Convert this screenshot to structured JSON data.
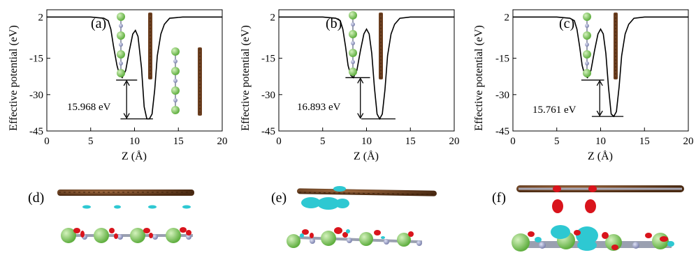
{
  "figure": {
    "panel_labels": [
      "(a)",
      "(b)",
      "(c)",
      "(d)",
      "(e)",
      "(f)"
    ]
  },
  "colors": {
    "curve": "#000000",
    "carbon_brown": "#6b3e1f",
    "chlorine_green": "#8ecf6a",
    "nitrogen_blue": "#a9aed6",
    "bond_gray": "#9aa0b0",
    "iso_cyan": "#2ec8d2",
    "iso_red": "#d9141c"
  },
  "chart_data": [
    {
      "type": "line",
      "panel": "(a)",
      "xlabel": "Z (Å)",
      "ylabel": "Effective potential  (eV)",
      "xlim": [
        0,
        20
      ],
      "ylim": [
        -45,
        5
      ],
      "xticks": [
        0,
        5,
        10,
        15,
        20
      ],
      "yticks": [
        2,
        -15,
        -30,
        -45
      ],
      "ytick_labels": [
        "2",
        "-15",
        "-30",
        "-45"
      ],
      "x": [
        0,
        5,
        6.5,
        7.0,
        7.3,
        7.6,
        8.0,
        8.3,
        8.6,
        9.0,
        9.4,
        9.8,
        10.1,
        10.4,
        10.8,
        11.1,
        11.4,
        11.7,
        12.0,
        12.3,
        12.6,
        13.0,
        13.4,
        14.0,
        15.5,
        20
      ],
      "y": [
        2,
        2,
        1.5,
        0.5,
        -3,
        -10,
        -18,
        -22,
        -23,
        -20,
        -12,
        -5,
        -3.5,
        -6,
        -19,
        -35,
        -40,
        -40,
        -38,
        -28,
        -14,
        -5,
        -1,
        1.5,
        2,
        2
      ],
      "depth_bracket": {
        "label": "15.968 eV",
        "upper": -24,
        "lower": -40,
        "x": 9.1,
        "upper_span": [
          7.9,
          10.3
        ],
        "lower_span": [
          8.4,
          12.1
        ]
      }
    },
    {
      "type": "line",
      "panel": "(b)",
      "xlabel": "Z (Å)",
      "ylabel": "Effective potential  (eV)",
      "xlim": [
        0,
        20
      ],
      "ylim": [
        -45,
        5
      ],
      "xticks": [
        0,
        5,
        10,
        15,
        20
      ],
      "yticks": [
        2,
        -15,
        -30,
        -45
      ],
      "ytick_labels": [
        "2",
        "-15",
        "-30",
        "-45"
      ],
      "x": [
        0,
        5,
        6.5,
        7.0,
        7.3,
        7.6,
        7.9,
        8.2,
        8.5,
        8.9,
        9.3,
        9.7,
        10.0,
        10.3,
        10.6,
        10.9,
        11.2,
        11.5,
        11.8,
        12.1,
        12.4,
        12.8,
        13.2,
        13.8,
        15.0,
        20
      ],
      "y": [
        2,
        2,
        1.5,
        0.5,
        -3,
        -10,
        -18,
        -22,
        -23,
        -20,
        -12,
        -5,
        -3,
        -5,
        -13,
        -27,
        -38,
        -40,
        -38,
        -28,
        -14,
        -5,
        -1,
        1.5,
        2,
        2
      ],
      "depth_bracket": {
        "label": "16.893 eV",
        "upper": -23,
        "lower": -40,
        "x": 9.3,
        "upper_span": [
          7.6,
          10.4
        ],
        "lower_span": [
          9.4,
          13.3
        ]
      }
    },
    {
      "type": "line",
      "panel": "(c)",
      "xlabel": "Z (Å)",
      "ylabel": "Effective potential  (eV)",
      "xlim": [
        0,
        20
      ],
      "ylim": [
        -45,
        5
      ],
      "xticks": [
        0,
        5,
        10,
        15,
        20
      ],
      "yticks": [
        2,
        -15,
        -30,
        -45
      ],
      "ytick_labels": [
        "2",
        "-15",
        "-30",
        "-45"
      ],
      "x": [
        0,
        5,
        6.5,
        7.0,
        7.3,
        7.6,
        7.9,
        8.2,
        8.5,
        8.9,
        9.3,
        9.7,
        10.0,
        10.3,
        10.6,
        10.9,
        11.2,
        11.5,
        11.8,
        12.1,
        12.4,
        12.8,
        13.2,
        13.8,
        15.0,
        20
      ],
      "y": [
        2,
        2,
        1.5,
        0.5,
        -3,
        -10,
        -18,
        -22,
        -23,
        -20,
        -12,
        -5,
        -3,
        -5,
        -13,
        -27,
        -38,
        -39,
        -37,
        -27,
        -14,
        -5,
        -1,
        1.5,
        2,
        2
      ],
      "depth_bracket": {
        "label": "15.761 eV",
        "upper": -24,
        "lower": -39,
        "x": 9.9,
        "upper_span": [
          7.8,
          10.4
        ],
        "lower_span": [
          9.0,
          12.6
        ]
      }
    }
  ]
}
